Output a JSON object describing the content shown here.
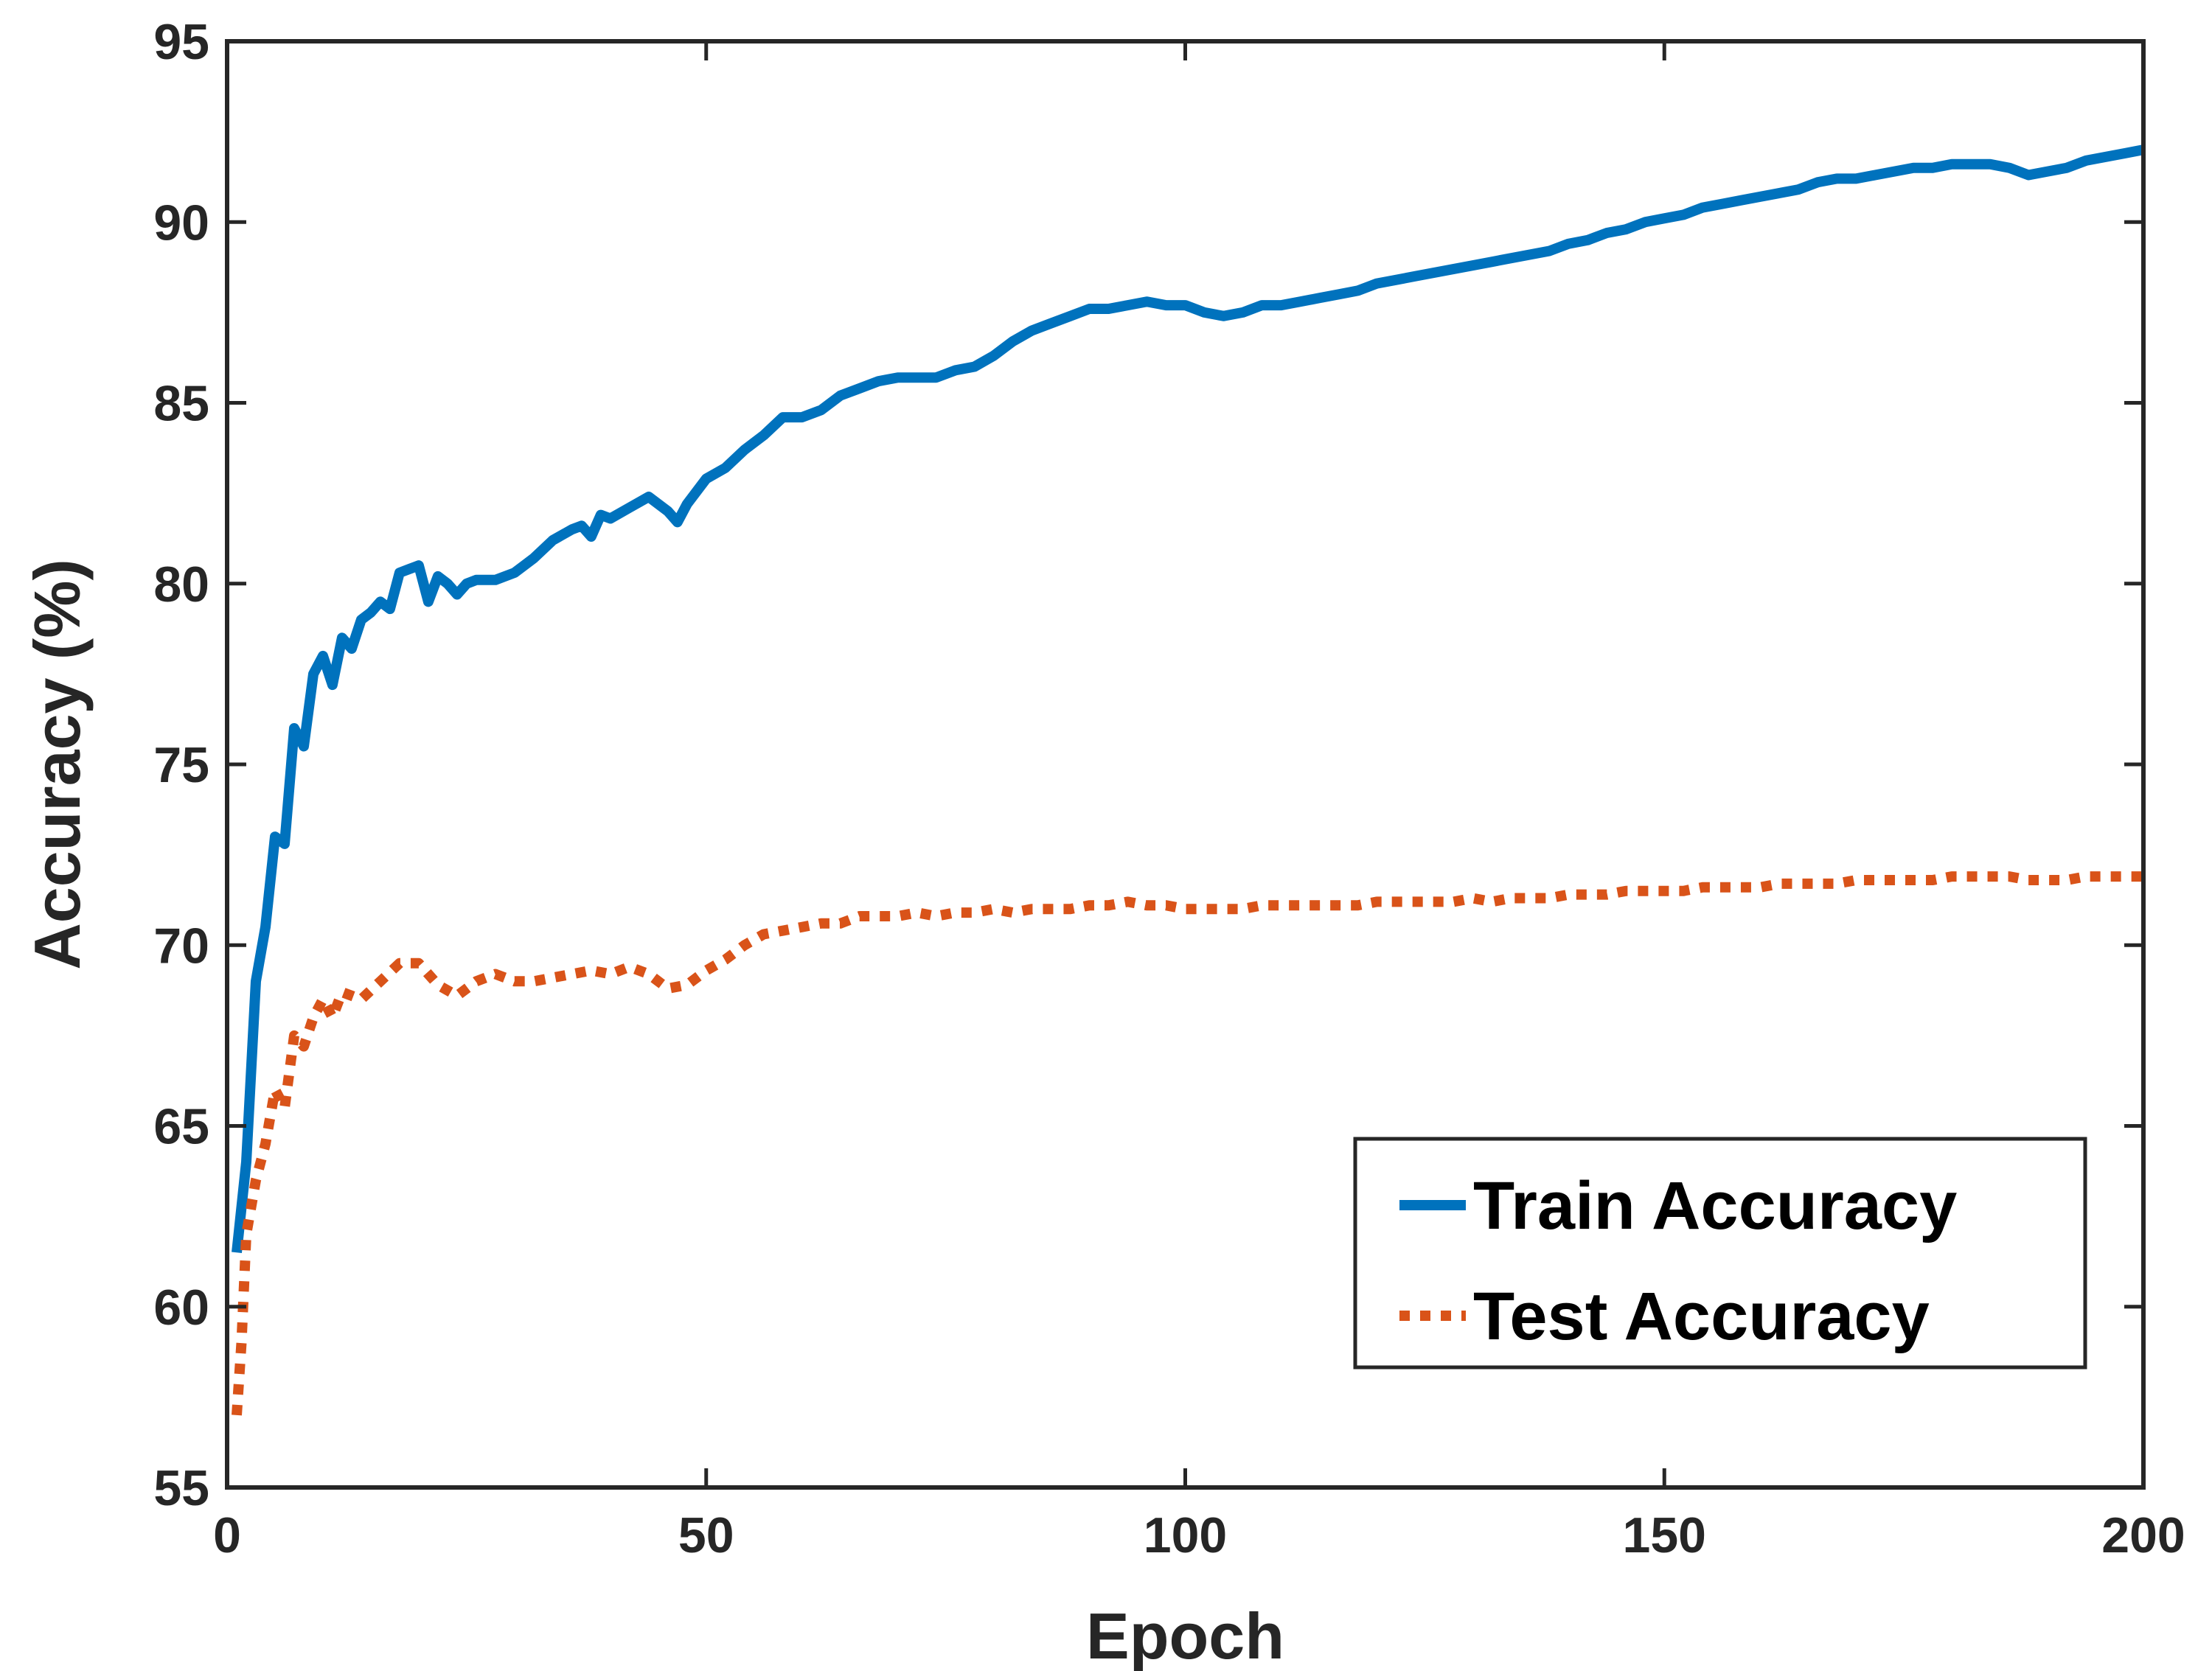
{
  "chart_data": {
    "type": "line",
    "title": "",
    "xlabel": "Epoch",
    "ylabel": "Accuracy (%)",
    "xlim": [
      0,
      200
    ],
    "ylim": [
      55,
      95
    ],
    "xticks": [
      "0",
      "50",
      "100",
      "150",
      "200"
    ],
    "yticks": [
      "55",
      "60",
      "65",
      "70",
      "75",
      "80",
      "85",
      "90",
      "95"
    ],
    "grid": false,
    "legend_position": "bottom-right",
    "series": [
      {
        "name": "Train Accuracy",
        "color": "#0072BD",
        "style": "solid",
        "points": [
          [
            1,
            61.5
          ],
          [
            2,
            64
          ],
          [
            3,
            69
          ],
          [
            4,
            70.5
          ],
          [
            5,
            73
          ],
          [
            6,
            72.8
          ],
          [
            7,
            76
          ],
          [
            8,
            75.5
          ],
          [
            9,
            77.5
          ],
          [
            10,
            78
          ],
          [
            11,
            77.2
          ],
          [
            12,
            78.5
          ],
          [
            13,
            78.2
          ],
          [
            14,
            79
          ],
          [
            15,
            79.2
          ],
          [
            16,
            79.5
          ],
          [
            17,
            79.3
          ],
          [
            18,
            80.3
          ],
          [
            19,
            80.4
          ],
          [
            20,
            80.5
          ],
          [
            21,
            79.5
          ],
          [
            22,
            80.2
          ],
          [
            23,
            80
          ],
          [
            24,
            79.7
          ],
          [
            25,
            80
          ],
          [
            26,
            80.1
          ],
          [
            28,
            80.1
          ],
          [
            30,
            80.3
          ],
          [
            32,
            80.7
          ],
          [
            34,
            81.2
          ],
          [
            36,
            81.5
          ],
          [
            37,
            81.6
          ],
          [
            38,
            81.3
          ],
          [
            39,
            81.9
          ],
          [
            40,
            81.8
          ],
          [
            42,
            82.1
          ],
          [
            44,
            82.4
          ],
          [
            46,
            82
          ],
          [
            47,
            81.7
          ],
          [
            48,
            82.2
          ],
          [
            50,
            82.9
          ],
          [
            52,
            83.2
          ],
          [
            54,
            83.7
          ],
          [
            56,
            84.1
          ],
          [
            58,
            84.6
          ],
          [
            60,
            84.6
          ],
          [
            62,
            84.8
          ],
          [
            64,
            85.2
          ],
          [
            66,
            85.4
          ],
          [
            68,
            85.6
          ],
          [
            70,
            85.7
          ],
          [
            72,
            85.7
          ],
          [
            74,
            85.7
          ],
          [
            76,
            85.9
          ],
          [
            78,
            86
          ],
          [
            80,
            86.3
          ],
          [
            82,
            86.7
          ],
          [
            84,
            87
          ],
          [
            86,
            87.2
          ],
          [
            88,
            87.4
          ],
          [
            90,
            87.6
          ],
          [
            92,
            87.6
          ],
          [
            94,
            87.7
          ],
          [
            96,
            87.8
          ],
          [
            98,
            87.7
          ],
          [
            100,
            87.7
          ],
          [
            102,
            87.5
          ],
          [
            104,
            87.4
          ],
          [
            106,
            87.5
          ],
          [
            108,
            87.7
          ],
          [
            110,
            87.7
          ],
          [
            112,
            87.8
          ],
          [
            114,
            87.9
          ],
          [
            116,
            88
          ],
          [
            118,
            88.1
          ],
          [
            120,
            88.3
          ],
          [
            122,
            88.4
          ],
          [
            124,
            88.5
          ],
          [
            126,
            88.6
          ],
          [
            128,
            88.7
          ],
          [
            130,
            88.8
          ],
          [
            132,
            88.9
          ],
          [
            134,
            89
          ],
          [
            136,
            89.1
          ],
          [
            138,
            89.2
          ],
          [
            140,
            89.4
          ],
          [
            142,
            89.5
          ],
          [
            144,
            89.7
          ],
          [
            146,
            89.8
          ],
          [
            148,
            90
          ],
          [
            150,
            90.1
          ],
          [
            152,
            90.2
          ],
          [
            154,
            90.4
          ],
          [
            156,
            90.5
          ],
          [
            158,
            90.6
          ],
          [
            160,
            90.7
          ],
          [
            162,
            90.8
          ],
          [
            164,
            90.9
          ],
          [
            166,
            91.1
          ],
          [
            168,
            91.2
          ],
          [
            170,
            91.2
          ],
          [
            172,
            91.3
          ],
          [
            174,
            91.4
          ],
          [
            176,
            91.5
          ],
          [
            178,
            91.5
          ],
          [
            180,
            91.6
          ],
          [
            182,
            91.6
          ],
          [
            184,
            91.6
          ],
          [
            186,
            91.5
          ],
          [
            188,
            91.3
          ],
          [
            190,
            91.4
          ],
          [
            192,
            91.5
          ],
          [
            194,
            91.7
          ],
          [
            196,
            91.8
          ],
          [
            198,
            91.9
          ],
          [
            200,
            92
          ]
        ]
      },
      {
        "name": "Test Accuracy",
        "color": "#D95319",
        "style": "dotted",
        "points": [
          [
            1,
            57
          ],
          [
            1.5,
            59
          ],
          [
            2,
            62
          ],
          [
            3,
            63.5
          ],
          [
            4,
            64.5
          ],
          [
            5,
            66
          ],
          [
            6,
            65.5
          ],
          [
            7,
            67.5
          ],
          [
            8,
            67.2
          ],
          [
            9,
            68
          ],
          [
            10,
            68.5
          ],
          [
            11,
            68
          ],
          [
            12,
            68.7
          ],
          [
            14,
            68.5
          ],
          [
            16,
            69
          ],
          [
            18,
            69.5
          ],
          [
            20,
            69.5
          ],
          [
            22,
            68.9
          ],
          [
            24,
            68.6
          ],
          [
            26,
            69
          ],
          [
            28,
            69.2
          ],
          [
            30,
            69
          ],
          [
            32,
            69
          ],
          [
            34,
            69.1
          ],
          [
            36,
            69.2
          ],
          [
            38,
            69.3
          ],
          [
            40,
            69.2
          ],
          [
            42,
            69.4
          ],
          [
            44,
            69.2
          ],
          [
            46,
            68.8
          ],
          [
            48,
            68.9
          ],
          [
            50,
            69.3
          ],
          [
            52,
            69.6
          ],
          [
            54,
            70
          ],
          [
            56,
            70.3
          ],
          [
            58,
            70.4
          ],
          [
            60,
            70.5
          ],
          [
            62,
            70.6
          ],
          [
            64,
            70.6
          ],
          [
            66,
            70.8
          ],
          [
            68,
            70.8
          ],
          [
            70,
            70.8
          ],
          [
            72,
            70.9
          ],
          [
            74,
            70.8
          ],
          [
            76,
            70.9
          ],
          [
            78,
            70.9
          ],
          [
            80,
            71
          ],
          [
            82,
            70.9
          ],
          [
            84,
            71
          ],
          [
            86,
            71
          ],
          [
            88,
            71
          ],
          [
            90,
            71.1
          ],
          [
            92,
            71.1
          ],
          [
            94,
            71.2
          ],
          [
            96,
            71.1
          ],
          [
            98,
            71.1
          ],
          [
            100,
            71
          ],
          [
            102,
            71
          ],
          [
            104,
            71
          ],
          [
            106,
            71
          ],
          [
            108,
            71.1
          ],
          [
            110,
            71.1
          ],
          [
            112,
            71.1
          ],
          [
            114,
            71.1
          ],
          [
            116,
            71.1
          ],
          [
            118,
            71.1
          ],
          [
            120,
            71.2
          ],
          [
            122,
            71.2
          ],
          [
            124,
            71.2
          ],
          [
            126,
            71.2
          ],
          [
            128,
            71.2
          ],
          [
            130,
            71.3
          ],
          [
            132,
            71.2
          ],
          [
            134,
            71.3
          ],
          [
            136,
            71.3
          ],
          [
            138,
            71.3
          ],
          [
            140,
            71.4
          ],
          [
            142,
            71.4
          ],
          [
            144,
            71.4
          ],
          [
            146,
            71.5
          ],
          [
            148,
            71.5
          ],
          [
            150,
            71.5
          ],
          [
            152,
            71.5
          ],
          [
            154,
            71.6
          ],
          [
            156,
            71.6
          ],
          [
            158,
            71.6
          ],
          [
            160,
            71.6
          ],
          [
            162,
            71.7
          ],
          [
            164,
            71.7
          ],
          [
            166,
            71.7
          ],
          [
            168,
            71.7
          ],
          [
            170,
            71.8
          ],
          [
            172,
            71.8
          ],
          [
            174,
            71.8
          ],
          [
            176,
            71.8
          ],
          [
            178,
            71.8
          ],
          [
            180,
            71.9
          ],
          [
            182,
            71.9
          ],
          [
            184,
            71.9
          ],
          [
            186,
            71.9
          ],
          [
            188,
            71.8
          ],
          [
            190,
            71.8
          ],
          [
            192,
            71.8
          ],
          [
            194,
            71.9
          ],
          [
            196,
            71.9
          ],
          [
            198,
            71.9
          ],
          [
            200,
            71.9
          ]
        ]
      }
    ]
  }
}
